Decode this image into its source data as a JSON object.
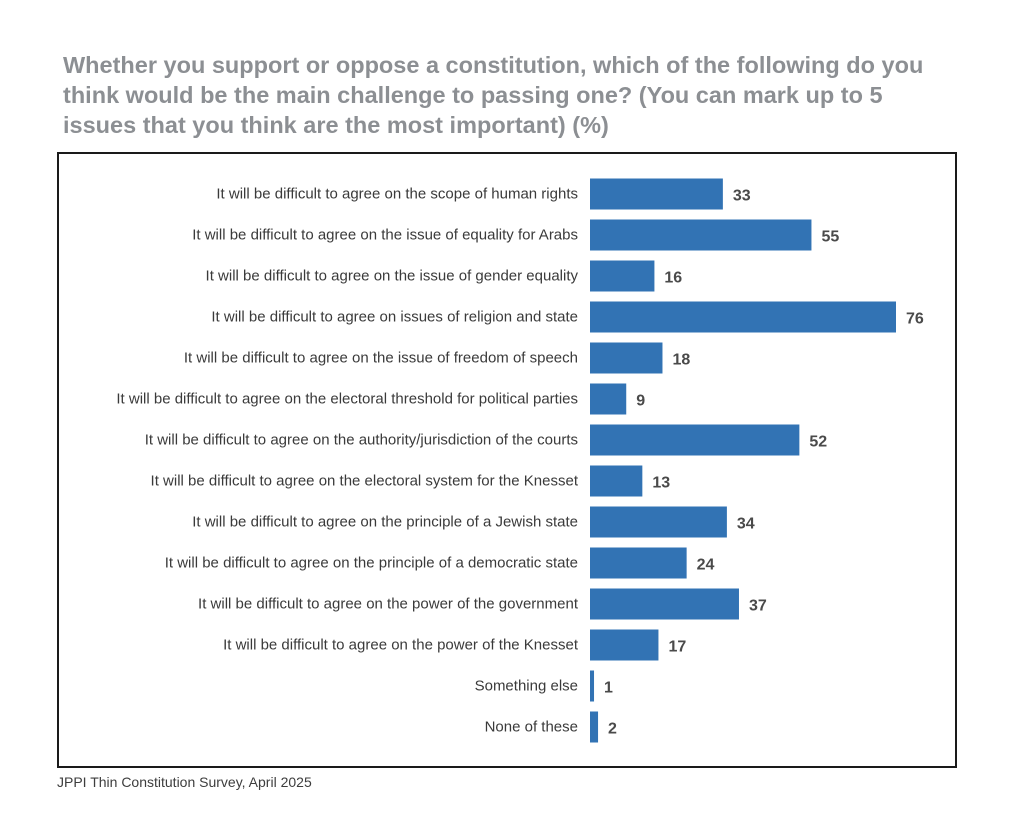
{
  "title": "Whether you support or oppose a constitution, which of the following do you think would be the main challenge to passing one? (You can mark up to 5 issues that you think are the most important) (%)",
  "source": "JPPI Thin Constitution Survey, April 2025",
  "colors": {
    "bar": "#3273b4",
    "label_text": "#3a3a3a",
    "value_text": "#4a4a4a",
    "title": "#8c8f93"
  },
  "chart_data": {
    "type": "bar",
    "orientation": "horizontal",
    "title": "Whether you support or oppose a constitution, which of the following do you think would be the main challenge to passing one? (You can mark up to 5 issues that you think are the most important) (%)",
    "xlabel": "",
    "ylabel": "",
    "xlim": [
      0,
      76
    ],
    "grid": false,
    "legend": "none",
    "categories": [
      "It will be difficult to agree on the scope of human rights",
      "It will be difficult to agree on the issue of equality for Arabs",
      "It will be difficult to agree on the issue of gender equality",
      "It will be difficult to agree on issues of religion and state",
      "It will be difficult to agree on the issue of freedom of speech",
      "It will be difficult to agree on the electoral threshold for political parties",
      "It will be difficult to agree on the authority/jurisdiction of the courts",
      "It will be difficult to agree on the electoral system for the Knesset",
      "It will be difficult to agree on the principle of a Jewish state",
      "It will be difficult to agree on the principle of a democratic state",
      "It will be difficult to agree on the power of the government",
      "It will be difficult to agree on the power of the Knesset",
      "Something else",
      "None of these"
    ],
    "values": [
      33,
      55,
      16,
      76,
      18,
      9,
      52,
      13,
      34,
      24,
      37,
      17,
      1,
      2
    ]
  }
}
